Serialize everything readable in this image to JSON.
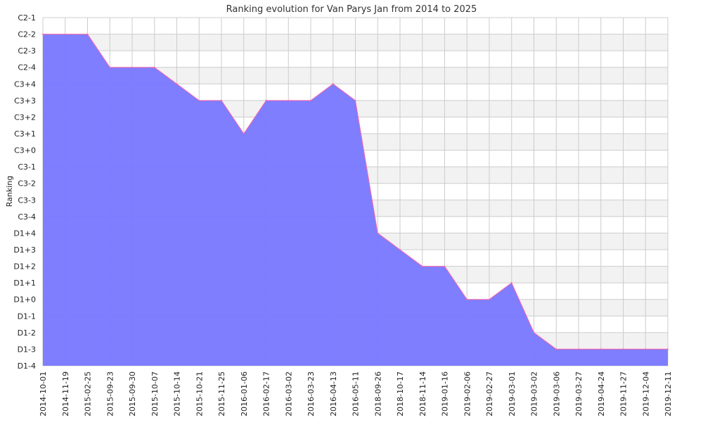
{
  "chart_data": {
    "type": "area",
    "title": "Ranking evolution for Van Parys Jan from 2014 to 2025",
    "ylabel": "Ranking",
    "xlabel": "",
    "y_categories": [
      "C2-1",
      "C2-2",
      "C2-3",
      "C2-4",
      "C3+4",
      "C3+3",
      "C3+2",
      "C3+1",
      "C3+0",
      "C3-1",
      "C3-2",
      "C3-3",
      "C3-4",
      "D1+4",
      "D1+3",
      "D1+2",
      "D1+1",
      "D1+0",
      "D1-1",
      "D1-2",
      "D1-3",
      "D1-4"
    ],
    "x": [
      "2014-10-01",
      "2014-11-19",
      "2015-02-25",
      "2015-09-23",
      "2015-09-30",
      "2015-10-07",
      "2015-10-14",
      "2015-10-21",
      "2015-11-25",
      "2016-01-06",
      "2016-02-17",
      "2016-03-02",
      "2016-03-23",
      "2016-04-13",
      "2016-05-11",
      "2018-09-26",
      "2018-10-17",
      "2018-11-14",
      "2019-01-16",
      "2019-02-06",
      "2019-02-27",
      "2019-03-01",
      "2019-03-02",
      "2019-03-06",
      "2019-03-27",
      "2019-04-24",
      "2019-11-27",
      "2019-12-04",
      "2019-12-11"
    ],
    "series": [
      {
        "values": [
          "C2-2",
          "C2-2",
          "C2-2",
          "C2-4",
          "C2-4",
          "C2-4",
          "C3+4",
          "C3+3",
          "C3+3",
          "C3+1",
          "C3+3",
          "C3+3",
          "C3+3",
          "C3+4",
          "C3+3",
          "D1+4",
          "D1+3",
          "D1+2",
          "D1+2",
          "D1+0",
          "D1+0",
          "D1+1",
          "D1-2",
          "D1-3",
          "D1-3",
          "D1-3",
          "D1-3",
          "D1-3",
          "D1-3"
        ]
      }
    ],
    "grid": true,
    "colors": {
      "fill": "#7777ff",
      "line": "#ff66aa",
      "band": "#f2f2f2",
      "grid": "#cccccc"
    }
  }
}
